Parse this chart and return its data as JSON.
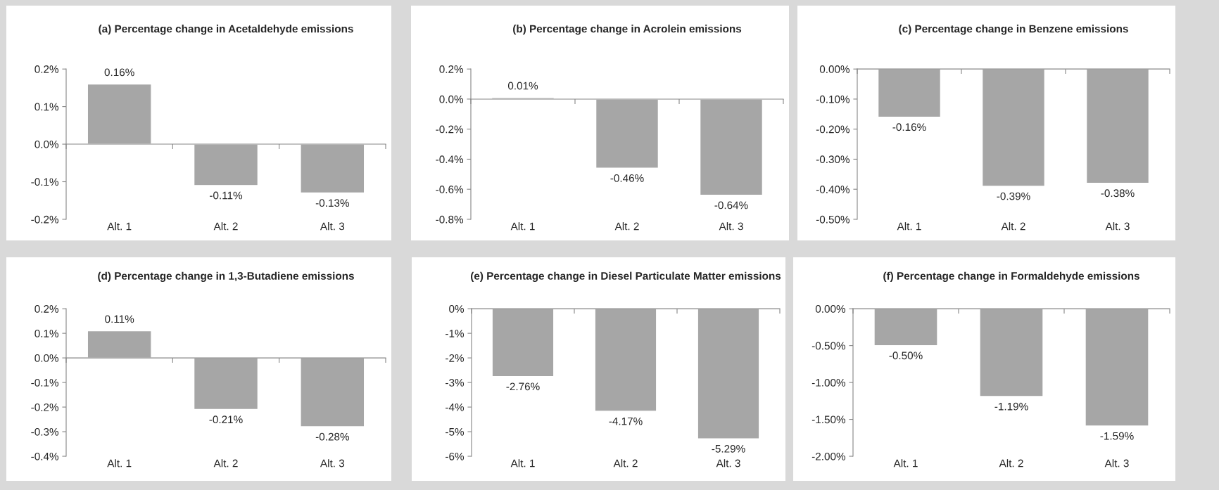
{
  "chart_data": [
    {
      "type": "bar",
      "title": "(a) Percentage change in Acetaldehyde emissions",
      "categories": [
        "Alt. 1",
        "Alt. 2",
        "Alt. 3"
      ],
      "values": [
        0.16,
        -0.11,
        -0.13
      ],
      "value_labels": [
        "0.16%",
        "-0.11%",
        "-0.13%"
      ],
      "color": "#a6a6a6",
      "ylim": [
        -0.2,
        0.2
      ],
      "yticks": [
        {
          "value": -0.2,
          "label": "-0.2%"
        },
        {
          "value": -0.1,
          "label": "-0.1%"
        },
        {
          "value": 0,
          "label": "0.0%"
        },
        {
          "value": 0.1,
          "label": "0.1%"
        },
        {
          "value": 0.2,
          "label": "0.2%"
        }
      ]
    },
    {
      "type": "bar",
      "title": "(b) Percentage change in Acrolein emissions",
      "categories": [
        "Alt. 1",
        "Alt. 2",
        "Alt. 3"
      ],
      "values": [
        0.01,
        -0.46,
        -0.64
      ],
      "value_labels": [
        "0.01%",
        "-0.46%",
        "-0.64%"
      ],
      "color": "#a6a6a6",
      "ylim": [
        -0.8,
        0.2
      ],
      "yticks": [
        {
          "value": -0.8,
          "label": "-0.8%"
        },
        {
          "value": -0.6,
          "label": "-0.6%"
        },
        {
          "value": -0.4,
          "label": "-0.4%"
        },
        {
          "value": -0.2,
          "label": "-0.2%"
        },
        {
          "value": 0,
          "label": "0.0%"
        },
        {
          "value": 0.2,
          "label": "0.2%"
        }
      ]
    },
    {
      "type": "bar",
      "title": "(c) Percentage change in Benzene emissions",
      "categories": [
        "Alt. 1",
        "Alt. 2",
        "Alt. 3"
      ],
      "values": [
        -0.16,
        -0.39,
        -0.38
      ],
      "value_labels": [
        "-0.16%",
        "-0.39%",
        "-0.38%"
      ],
      "color": "#a6a6a6",
      "ylim": [
        -0.5,
        0
      ],
      "yticks": [
        {
          "value": -0.5,
          "label": "-0.50%"
        },
        {
          "value": -0.4,
          "label": "-0.40%"
        },
        {
          "value": -0.3,
          "label": "-0.30%"
        },
        {
          "value": -0.2,
          "label": "-0.20%"
        },
        {
          "value": -0.1,
          "label": "-0.10%"
        },
        {
          "value": 0,
          "label": "0.00%"
        }
      ]
    },
    {
      "type": "bar",
      "title": "(d) Percentage change in 1,3-Butadiene emissions",
      "categories": [
        "Alt. 1",
        "Alt. 2",
        "Alt. 3"
      ],
      "values": [
        0.11,
        -0.21,
        -0.28
      ],
      "value_labels": [
        "0.11%",
        "-0.21%",
        "-0.28%"
      ],
      "color": "#a6a6a6",
      "ylim": [
        -0.4,
        0.2
      ],
      "yticks": [
        {
          "value": -0.4,
          "label": "-0.4%"
        },
        {
          "value": -0.3,
          "label": "-0.3%"
        },
        {
          "value": -0.2,
          "label": "-0.2%"
        },
        {
          "value": -0.1,
          "label": "-0.1%"
        },
        {
          "value": 0,
          "label": "0.0%"
        },
        {
          "value": 0.1,
          "label": "0.1%"
        },
        {
          "value": 0.2,
          "label": "0.2%"
        }
      ]
    },
    {
      "type": "bar",
      "title": "(e) Percentage change in Diesel Particulate Matter emissions",
      "categories": [
        "Alt. 1",
        "Alt. 2",
        "Alt. 3"
      ],
      "values": [
        -2.76,
        -4.17,
        -5.29
      ],
      "value_labels": [
        "-2.76%",
        "-4.17%",
        "-5.29%"
      ],
      "color": "#a6a6a6",
      "ylim": [
        -6,
        0
      ],
      "yticks": [
        {
          "value": -6,
          "label": "-6%"
        },
        {
          "value": -5,
          "label": "-5%"
        },
        {
          "value": -4,
          "label": "-4%"
        },
        {
          "value": -3,
          "label": "-3%"
        },
        {
          "value": -2,
          "label": "-2%"
        },
        {
          "value": -1,
          "label": "-1%"
        },
        {
          "value": 0,
          "label": "0%"
        }
      ]
    },
    {
      "type": "bar",
      "title": "(f) Percentage change in Formaldehyde emissions",
      "categories": [
        "Alt. 1",
        "Alt. 2",
        "Alt. 3"
      ],
      "values": [
        -0.5,
        -1.19,
        -1.59
      ],
      "value_labels": [
        "-0.50%",
        "-1.19%",
        "-1.59%"
      ],
      "color": "#a6a6a6",
      "ylim": [
        -2,
        0
      ],
      "yticks": [
        {
          "value": -2,
          "label": "-2.00%"
        },
        {
          "value": -1.5,
          "label": "-1.50%"
        },
        {
          "value": -1,
          "label": "-1.00%"
        },
        {
          "value": -0.5,
          "label": "-0.50%"
        },
        {
          "value": 0,
          "label": "0.00%"
        }
      ]
    }
  ]
}
